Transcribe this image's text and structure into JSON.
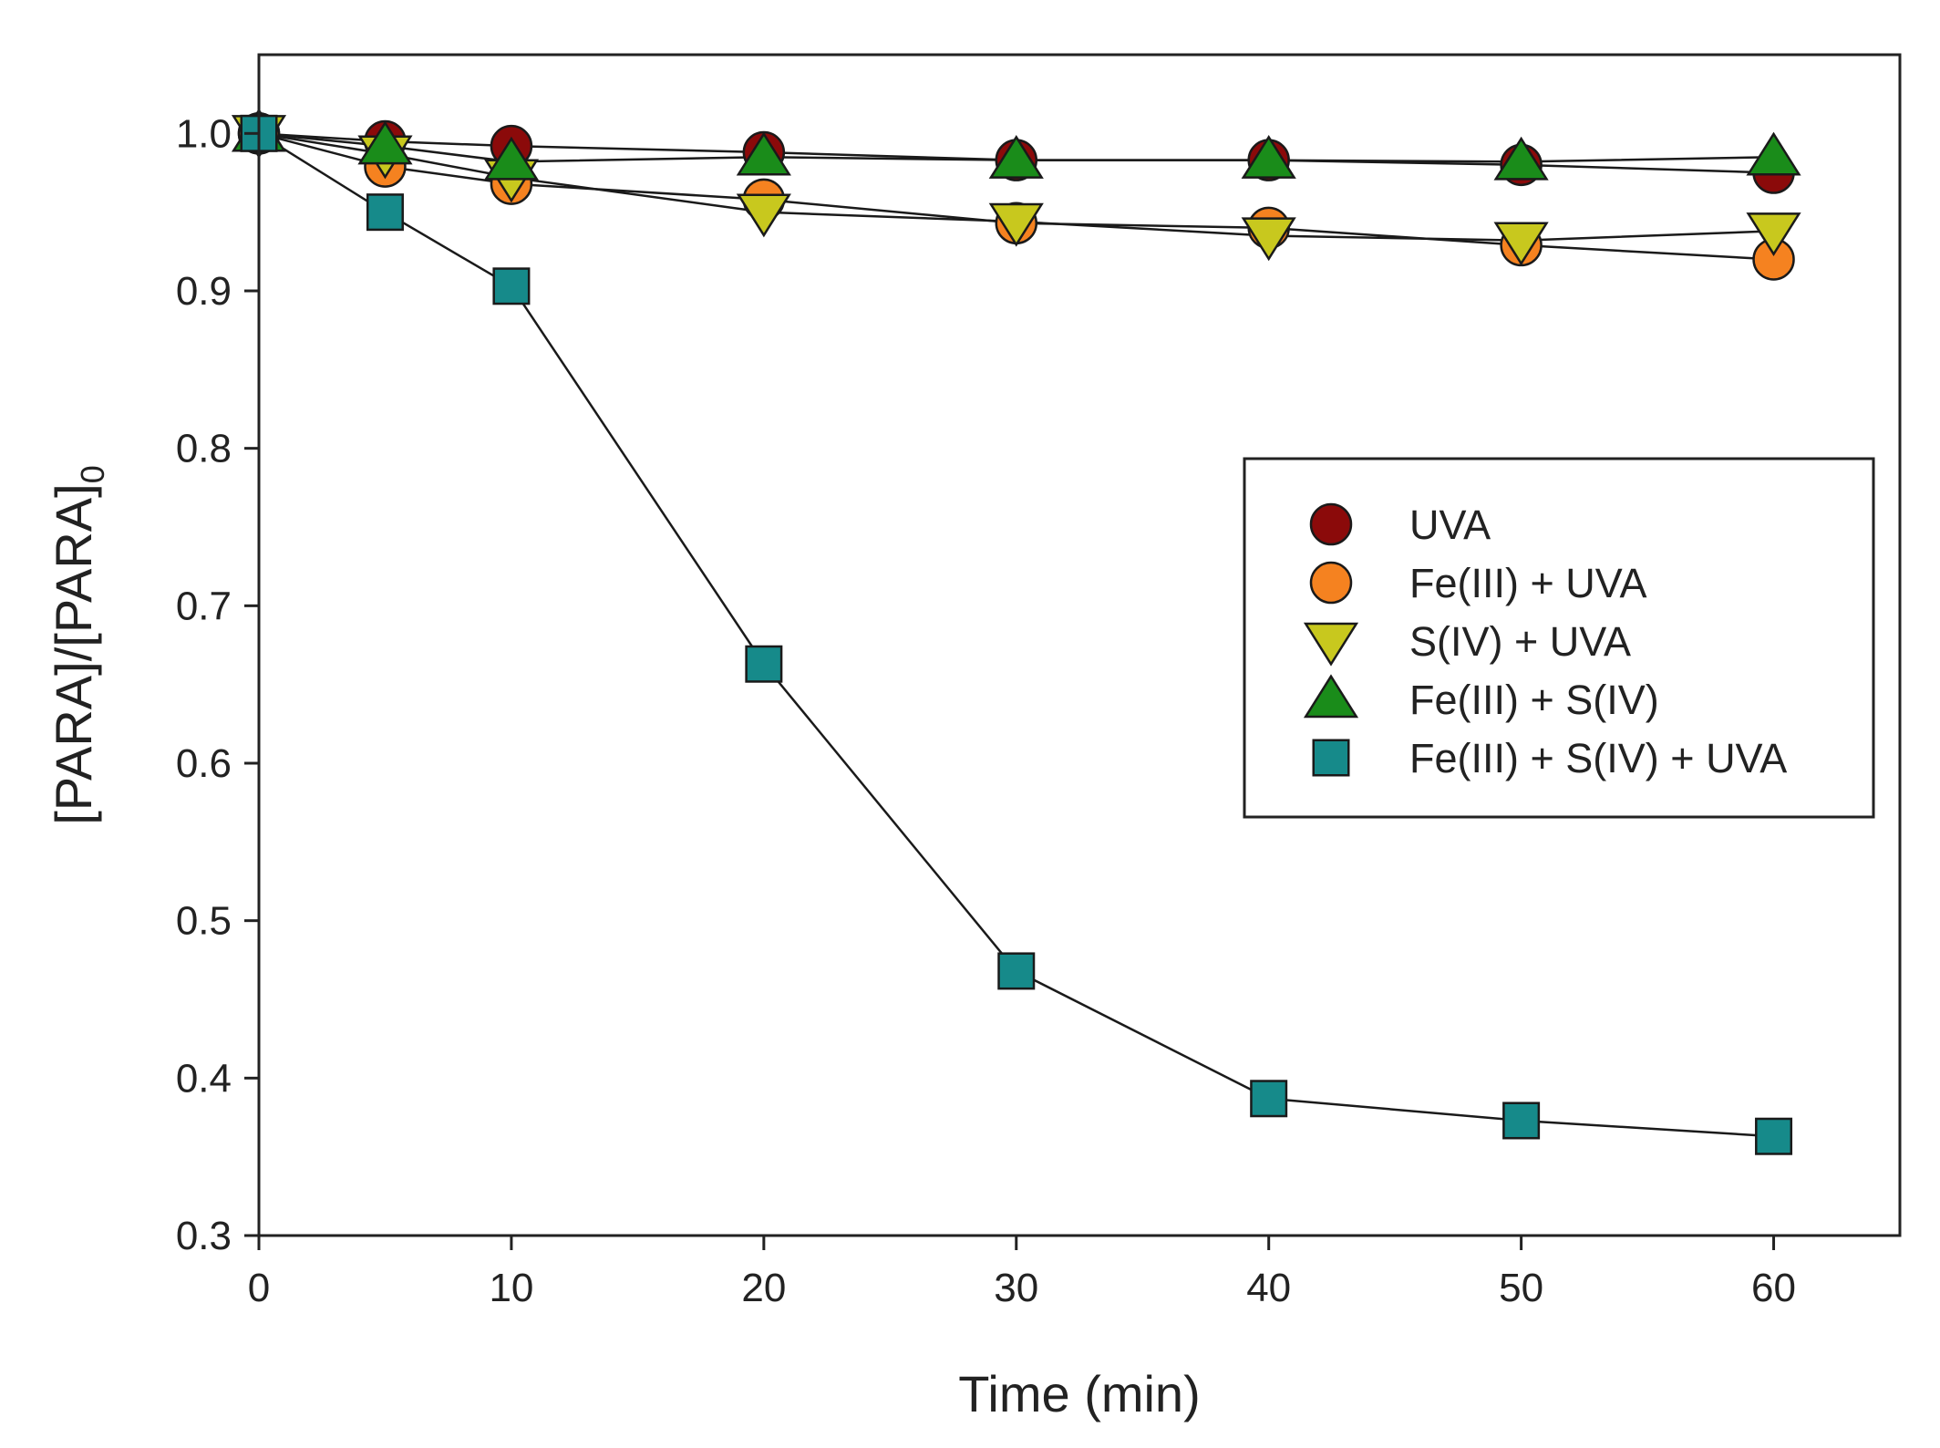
{
  "chart_data": {
    "type": "line",
    "title": "",
    "xlabel": "Time (min)",
    "ylabel": "[PARA]/[PARA]",
    "ylabel_subscript": "0",
    "xlim": [
      0,
      65
    ],
    "ylim": [
      0.3,
      1.05
    ],
    "xticks": [
      0,
      10,
      20,
      30,
      40,
      50,
      60
    ],
    "xtick_labels": [
      "0",
      "10",
      "20",
      "30",
      "40",
      "50",
      "60"
    ],
    "yticks": [
      0.3,
      0.4,
      0.5,
      0.6,
      0.7,
      0.8,
      0.9,
      1.0
    ],
    "ytick_labels": [
      "0.3",
      "0.4",
      "0.5",
      "0.6",
      "0.7",
      "0.8",
      "0.9",
      "1.0"
    ],
    "grid": false,
    "legend_position": "center-right",
    "x": [
      0,
      5,
      10,
      20,
      30,
      40,
      50,
      60
    ],
    "series": [
      {
        "name": "UVA",
        "marker": "circle",
        "color": "#8b0a0a",
        "values": [
          1.0,
          0.995,
          0.992,
          0.988,
          0.983,
          0.983,
          0.98,
          0.975
        ]
      },
      {
        "name": "Fe(III) + UVA",
        "marker": "circle",
        "color": "#f58220",
        "values": [
          1.0,
          0.979,
          0.968,
          0.958,
          0.943,
          0.94,
          0.929,
          0.92
        ]
      },
      {
        "name": "S(IV) + UVA",
        "marker": "triangle-down",
        "color": "#c8c81e",
        "values": [
          1.0,
          0.987,
          0.972,
          0.95,
          0.944,
          0.935,
          0.932,
          0.938
        ]
      },
      {
        "name": "Fe(III) + S(IV)",
        "marker": "triangle-up",
        "color": "#1a8c1a",
        "values": [
          1.0,
          0.992,
          0.982,
          0.985,
          0.983,
          0.983,
          0.982,
          0.985
        ]
      },
      {
        "name": "Fe(III) + S(IV) + UVA",
        "marker": "square",
        "color": "#168a8a",
        "values": [
          1.0,
          0.95,
          0.903,
          0.663,
          0.468,
          0.387,
          0.373,
          0.363
        ]
      }
    ]
  }
}
